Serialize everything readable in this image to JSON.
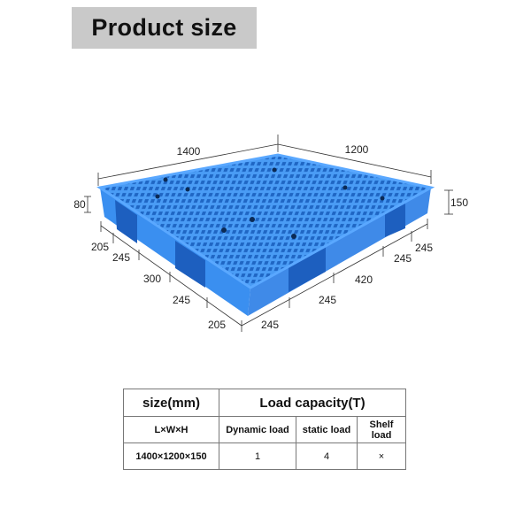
{
  "title": "Product size",
  "diagram": {
    "pallet_color": "#3a8ff0",
    "dimensions": {
      "length": "1400",
      "width": "1200",
      "height": "150",
      "fork_height": "80",
      "left_side": [
        "205",
        "245",
        "300",
        "245",
        "205"
      ],
      "right_side": [
        "245",
        "245",
        "420",
        "245",
        "245"
      ]
    }
  },
  "table": {
    "header_size": "size(mm)",
    "header_load": "Load capacity(T)",
    "sub_size": "L×W×H",
    "sub_dynamic": "Dynamic load",
    "sub_static": "static load",
    "sub_shelf": "Shelf load",
    "row": {
      "size": "1400×1200×150",
      "dynamic": "1",
      "static": "4",
      "shelf": "×"
    }
  }
}
